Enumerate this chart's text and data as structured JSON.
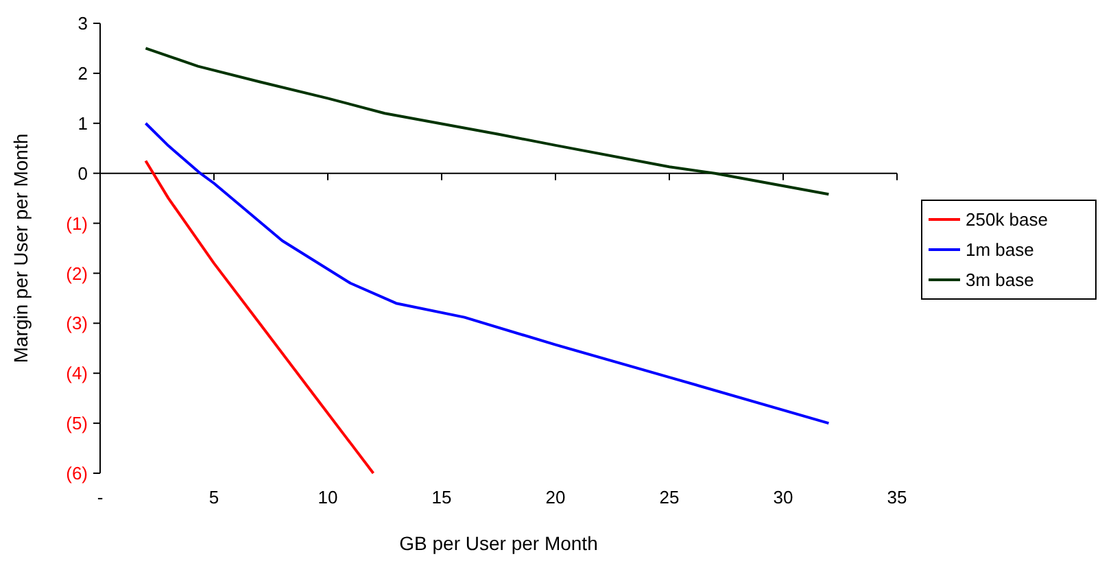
{
  "chart_data": {
    "type": "line",
    "xlabel": "GB per User per Month",
    "ylabel": "Margin per User per Month",
    "xlim": [
      0,
      35
    ],
    "xticks": [
      {
        "value": 0,
        "label": "-"
      },
      5,
      10,
      15,
      20,
      25,
      30,
      35
    ],
    "ylim": [
      -6,
      3
    ],
    "yticks": [
      {
        "value": -6,
        "label": "(6)"
      },
      {
        "value": -5,
        "label": "(5)"
      },
      {
        "value": -4,
        "label": "(4)"
      },
      {
        "value": -3,
        "label": "(3)"
      },
      {
        "value": -2,
        "label": "(2)"
      },
      {
        "value": -1,
        "label": "(1)"
      },
      0,
      1,
      2,
      3
    ],
    "legend": "right",
    "marker": "none",
    "line_style": "solid",
    "series": [
      {
        "name": "250k base",
        "color": "#ff0000",
        "x": [
          2,
          3,
          5,
          7,
          9.5,
          12
        ],
        "values": [
          0.25,
          -0.5,
          -1.8,
          -3.0,
          -4.5,
          -6
        ]
      },
      {
        "name": "1m base",
        "color": "#0000ff",
        "x": [
          2,
          3,
          4.4,
          5,
          8,
          11,
          13,
          16,
          20,
          25,
          32
        ],
        "values": [
          1,
          0.55,
          0,
          -0.2,
          -1.35,
          -2.2,
          -2.6,
          -2.88,
          -3.43,
          -4.08,
          -5.0
        ]
      },
      {
        "name": "3m base",
        "color": "#003300",
        "x": [
          2,
          4.3,
          7,
          10,
          12.5,
          17.5,
          20,
          25,
          27,
          32
        ],
        "values": [
          2.5,
          2.14,
          1.83,
          1.5,
          1.2,
          0.78,
          0.56,
          0.13,
          0,
          -0.42
        ]
      }
    ]
  }
}
